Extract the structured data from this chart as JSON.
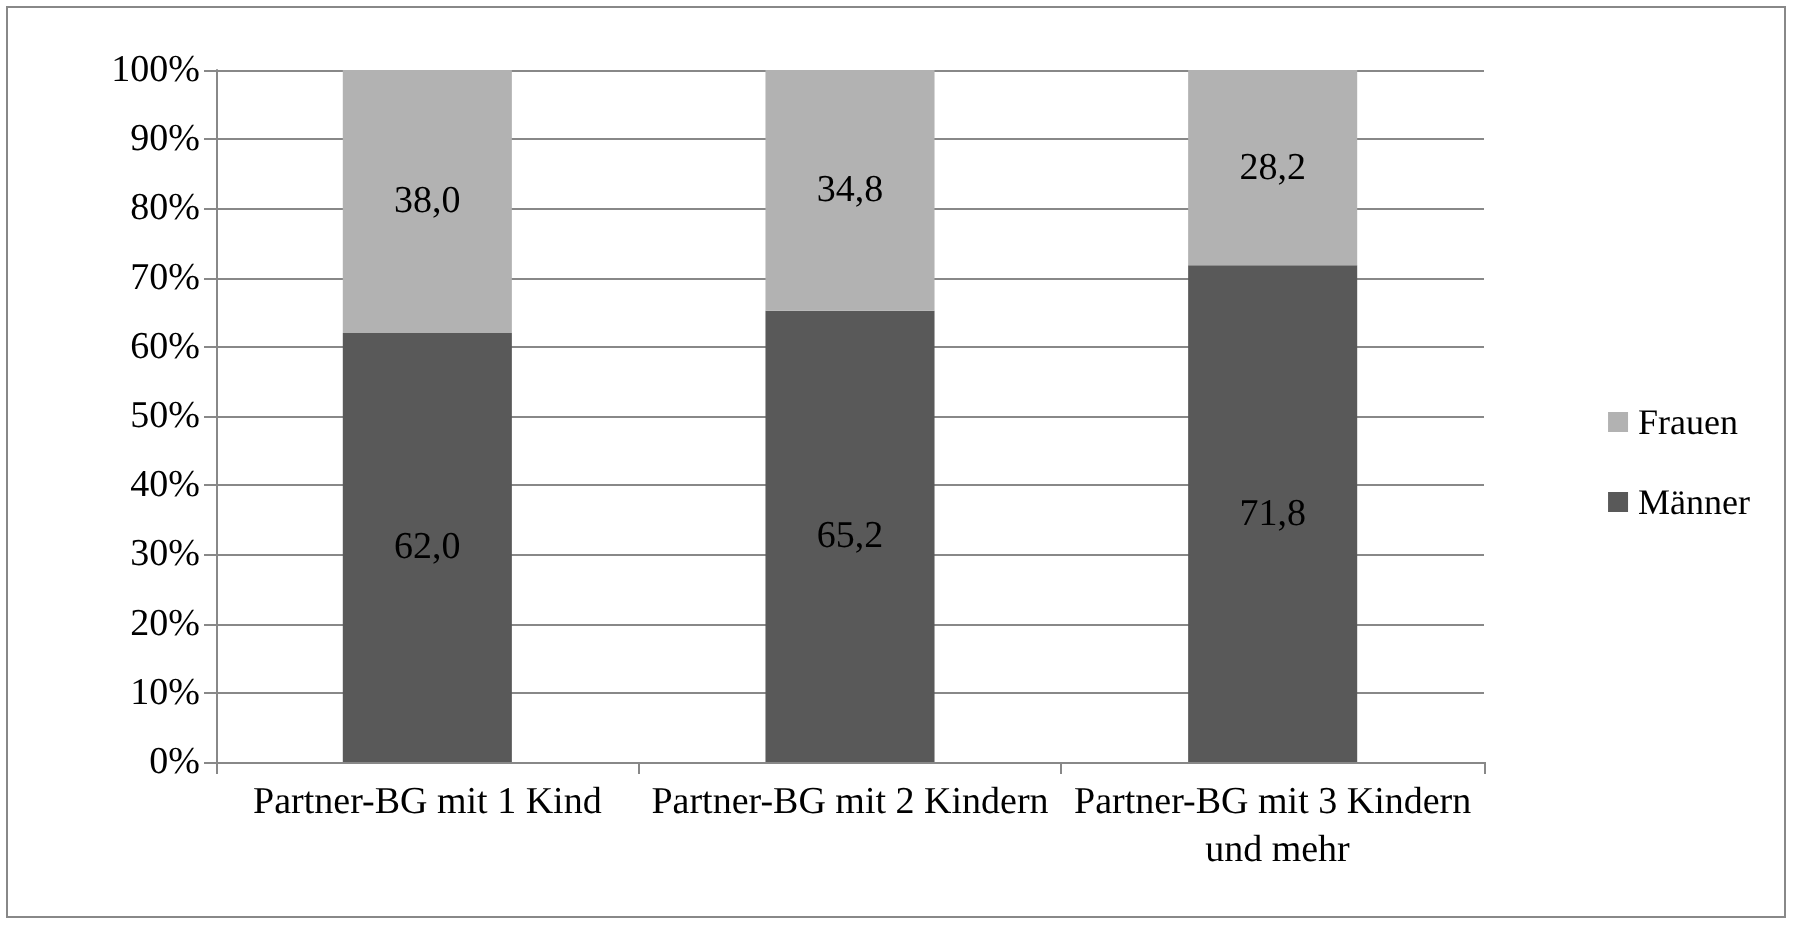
{
  "chart_data": {
    "type": "bar",
    "stacked": true,
    "categories": [
      "Partner-BG mit 1 Kind",
      "Partner-BG mit 2 Kindern",
      "Partner-BG mit 3 Kindern und mehr"
    ],
    "series": [
      {
        "name": "Männer",
        "color": "#595959",
        "values": [
          62.0,
          65.2,
          71.8
        ],
        "value_labels": [
          "62,0",
          "65,2",
          "71,8"
        ]
      },
      {
        "name": "Frauen",
        "color": "#b2b2b2",
        "values": [
          38.0,
          34.8,
          28.2
        ],
        "value_labels": [
          "38,0",
          "34,8",
          "28,2"
        ]
      }
    ],
    "ylim": [
      0,
      100
    ],
    "yticks": [
      {
        "value": 0,
        "label": "0%"
      },
      {
        "value": 10,
        "label": "10%"
      },
      {
        "value": 20,
        "label": "20%"
      },
      {
        "value": 30,
        "label": "30%"
      },
      {
        "value": 40,
        "label": "40%"
      },
      {
        "value": 50,
        "label": "50%"
      },
      {
        "value": 60,
        "label": "60%"
      },
      {
        "value": 70,
        "label": "70%"
      },
      {
        "value": 80,
        "label": "80%"
      },
      {
        "value": 90,
        "label": "90%"
      },
      {
        "value": 100,
        "label": "100%"
      }
    ],
    "grid": "y",
    "legend": "right"
  }
}
